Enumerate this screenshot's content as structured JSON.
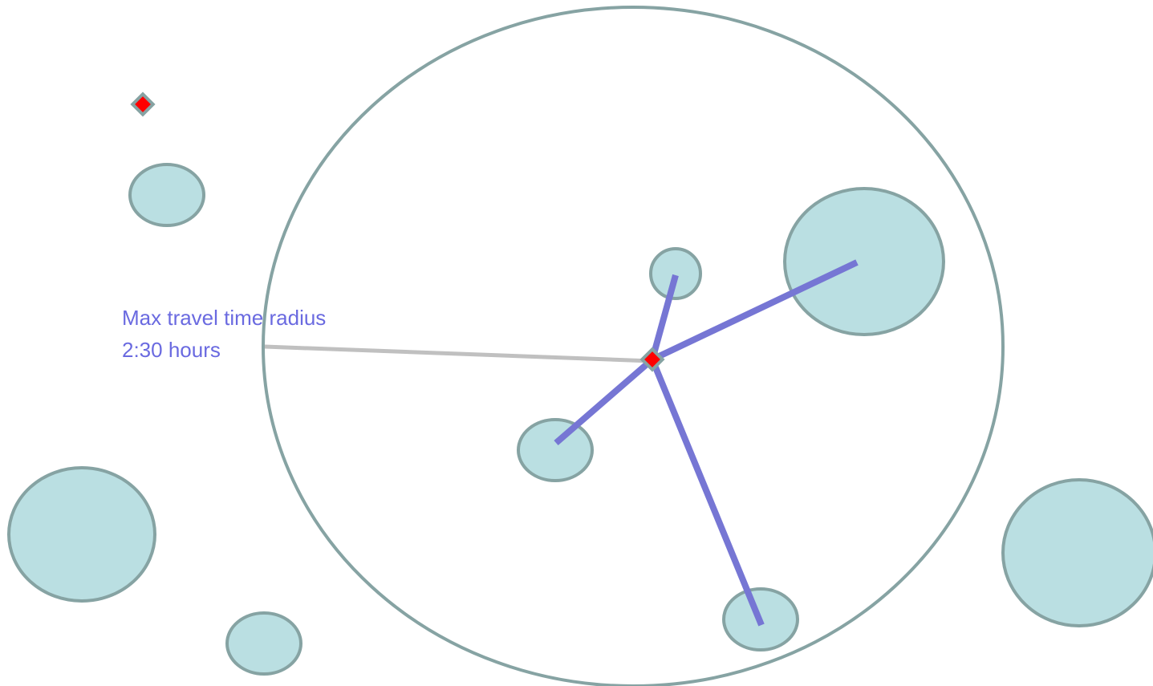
{
  "annotation": {
    "lines": [
      "Max travel time radius",
      "2:30 hours"
    ]
  }
}
